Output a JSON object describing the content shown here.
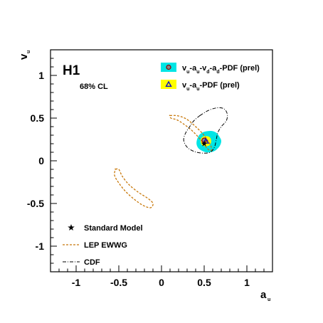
{
  "chart_data": {
    "type": "scatter",
    "xlabel": "a",
    "xlabel_sub": "u",
    "ylabel": "v",
    "ylabel_sub": "u",
    "xlim": [
      -1.3,
      1.3
    ],
    "ylim": [
      -1.3,
      1.3
    ],
    "x_ticks": [
      -1,
      -0.5,
      0,
      0.5,
      1
    ],
    "x_tick_labels": [
      "-1",
      "-0.5",
      "0",
      "0.5",
      "1"
    ],
    "y_ticks": [
      -1,
      -0.5,
      0,
      0.5,
      1
    ],
    "y_tick_labels": [
      "-1",
      "-0.5",
      "0",
      "0.5",
      "1"
    ],
    "experiment_label": "H1",
    "cl_label": "68% CL",
    "grid": false,
    "series": [
      {
        "name": "vu-au-vd-ad-PDF (prel)",
        "kind": "filled-contour",
        "color": "#00e5e5",
        "marker": "circle",
        "best_fit": {
          "x": 0.5,
          "y": 0.24
        },
        "contour": [
          [
            0.58,
            0.35
          ],
          [
            0.64,
            0.33
          ],
          [
            0.68,
            0.28
          ],
          [
            0.7,
            0.23
          ],
          [
            0.68,
            0.17
          ],
          [
            0.63,
            0.12
          ],
          [
            0.57,
            0.1
          ],
          [
            0.52,
            0.1
          ],
          [
            0.47,
            0.12
          ],
          [
            0.43,
            0.15
          ],
          [
            0.41,
            0.2
          ],
          [
            0.42,
            0.26
          ],
          [
            0.45,
            0.31
          ],
          [
            0.5,
            0.34
          ]
        ]
      },
      {
        "name": "vu-au-PDF (prel)",
        "kind": "filled-contour",
        "color": "#ffff00",
        "marker": "triangle",
        "best_fit": {
          "x": 0.52,
          "y": 0.23
        },
        "contour": [
          [
            0.52,
            0.29
          ],
          [
            0.56,
            0.28
          ],
          [
            0.58,
            0.25
          ],
          [
            0.58,
            0.21
          ],
          [
            0.56,
            0.18
          ],
          [
            0.52,
            0.17
          ],
          [
            0.48,
            0.18
          ],
          [
            0.46,
            0.21
          ],
          [
            0.46,
            0.25
          ],
          [
            0.48,
            0.28
          ]
        ]
      },
      {
        "name": "Standard Model",
        "kind": "point",
        "marker": "star",
        "x": 0.5,
        "y": 0.2
      },
      {
        "name": "LEP EWWG",
        "kind": "dashed-contour",
        "color": "#c8780a",
        "contour": [
          [
            [
              0.1,
              0.53
            ],
            [
              0.17,
              0.53
            ],
            [
              0.25,
              0.51
            ],
            [
              0.32,
              0.47
            ],
            [
              0.4,
              0.4
            ],
            [
              0.48,
              0.32
            ],
            [
              0.54,
              0.24
            ],
            [
              0.58,
              0.17
            ],
            [
              0.58,
              0.12
            ],
            [
              0.54,
              0.14
            ],
            [
              0.48,
              0.22
            ],
            [
              0.42,
              0.29
            ],
            [
              0.35,
              0.36
            ],
            [
              0.26,
              0.43
            ],
            [
              0.18,
              0.48
            ],
            [
              0.11,
              0.5
            ],
            [
              0.1,
              0.53
            ]
          ],
          [
            [
              -0.54,
              -0.1
            ],
            [
              -0.5,
              -0.1
            ],
            [
              -0.46,
              -0.18
            ],
            [
              -0.38,
              -0.28
            ],
            [
              -0.27,
              -0.37
            ],
            [
              -0.16,
              -0.44
            ],
            [
              -0.1,
              -0.5
            ],
            [
              -0.13,
              -0.55
            ],
            [
              -0.22,
              -0.52
            ],
            [
              -0.32,
              -0.45
            ],
            [
              -0.42,
              -0.36
            ],
            [
              -0.5,
              -0.26
            ],
            [
              -0.55,
              -0.17
            ],
            [
              -0.54,
              -0.1
            ]
          ]
        ]
      },
      {
        "name": "CDF",
        "kind": "dashdot-contour",
        "color": "#000000",
        "contour": [
          [
            0.45,
            0.53
          ],
          [
            0.55,
            0.59
          ],
          [
            0.65,
            0.62
          ],
          [
            0.73,
            0.61
          ],
          [
            0.77,
            0.55
          ],
          [
            0.76,
            0.47
          ],
          [
            0.7,
            0.4
          ],
          [
            0.66,
            0.33
          ],
          [
            0.64,
            0.24
          ],
          [
            0.62,
            0.16
          ],
          [
            0.57,
            0.1
          ],
          [
            0.48,
            0.09
          ],
          [
            0.38,
            0.11
          ],
          [
            0.3,
            0.16
          ],
          [
            0.26,
            0.24
          ],
          [
            0.28,
            0.32
          ],
          [
            0.33,
            0.4
          ],
          [
            0.38,
            0.47
          ],
          [
            0.45,
            0.53
          ]
        ]
      }
    ],
    "legend_top": {
      "placement": "top-right",
      "entries": [
        {
          "series": 0,
          "parts": [
            [
              "v",
              "u"
            ],
            [
              "-a",
              "u"
            ],
            [
              "-v",
              "d"
            ],
            [
              "-a",
              "d"
            ],
            [
              "-PDF (prel)",
              ""
            ]
          ]
        },
        {
          "series": 1,
          "parts": [
            [
              "v",
              "u"
            ],
            [
              "-a",
              "u"
            ],
            [
              "-PDF (prel)",
              ""
            ]
          ]
        }
      ]
    },
    "legend_bottom": {
      "placement": "bottom-left",
      "entries": [
        {
          "series": 2,
          "label": "Standard Model"
        },
        {
          "series": 3,
          "label": "LEP EWWG"
        },
        {
          "series": 4,
          "label": "CDF"
        }
      ]
    }
  }
}
